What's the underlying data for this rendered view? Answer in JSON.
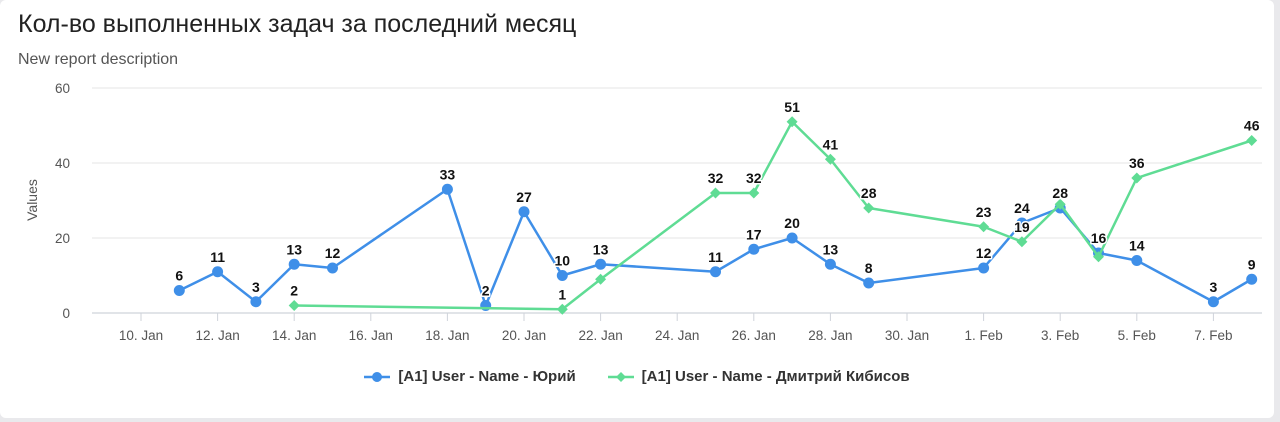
{
  "header": {
    "title": "Кол-во выполненных задач за последний месяц",
    "subtitle": "New report description"
  },
  "chart_data": {
    "type": "line",
    "ylabel": "Values",
    "ylim": [
      0,
      60
    ],
    "yticks": [
      0,
      20,
      40,
      60
    ],
    "grid": true,
    "legend_position": "bottom-center",
    "x_ticks": [
      {
        "date": "2025-01-10",
        "label": "10. Jan"
      },
      {
        "date": "2025-01-12",
        "label": "12. Jan"
      },
      {
        "date": "2025-01-14",
        "label": "14. Jan"
      },
      {
        "date": "2025-01-16",
        "label": "16. Jan"
      },
      {
        "date": "2025-01-18",
        "label": "18. Jan"
      },
      {
        "date": "2025-01-20",
        "label": "20. Jan"
      },
      {
        "date": "2025-01-22",
        "label": "22. Jan"
      },
      {
        "date": "2025-01-24",
        "label": "24. Jan"
      },
      {
        "date": "2025-01-26",
        "label": "26. Jan"
      },
      {
        "date": "2025-01-28",
        "label": "28. Jan"
      },
      {
        "date": "2025-01-30",
        "label": "30. Jan"
      },
      {
        "date": "2025-02-01",
        "label": "1. Feb"
      },
      {
        "date": "2025-02-03",
        "label": "3. Feb"
      },
      {
        "date": "2025-02-05",
        "label": "5. Feb"
      },
      {
        "date": "2025-02-07",
        "label": "7. Feb"
      }
    ],
    "series": [
      {
        "name": "[A1] User - Name - Юрий",
        "color": "#3f8fe8",
        "marker": "circle",
        "points": [
          {
            "x": "2025-01-11",
            "y": 6
          },
          {
            "x": "2025-01-12",
            "y": 11
          },
          {
            "x": "2025-01-13",
            "y": 3
          },
          {
            "x": "2025-01-14",
            "y": 13
          },
          {
            "x": "2025-01-15",
            "y": 12
          },
          {
            "x": "2025-01-18",
            "y": 33
          },
          {
            "x": "2025-01-19",
            "y": 2
          },
          {
            "x": "2025-01-20",
            "y": 27
          },
          {
            "x": "2025-01-21",
            "y": 10
          },
          {
            "x": "2025-01-22",
            "y": 13
          },
          {
            "x": "2025-01-25",
            "y": 11
          },
          {
            "x": "2025-01-26",
            "y": 17
          },
          {
            "x": "2025-01-27",
            "y": 20
          },
          {
            "x": "2025-01-28",
            "y": 13
          },
          {
            "x": "2025-01-29",
            "y": 8
          },
          {
            "x": "2025-02-01",
            "y": 12
          },
          {
            "x": "2025-02-02",
            "y": 24
          },
          {
            "x": "2025-02-03",
            "y": 28
          },
          {
            "x": "2025-02-04",
            "y": 16
          },
          {
            "x": "2025-02-05",
            "y": 14
          },
          {
            "x": "2025-02-07",
            "y": 3
          },
          {
            "x": "2025-02-08",
            "y": 9
          }
        ]
      },
      {
        "name": "[A1] User - Name - Дмитрий Кибисов",
        "color": "#5fdc94",
        "marker": "diamond",
        "points": [
          {
            "x": "2025-01-14",
            "y": 2
          },
          {
            "x": "2025-01-21",
            "y": 1
          },
          {
            "x": "2025-01-22",
            "y": 9,
            "label": false
          },
          {
            "x": "2025-01-25",
            "y": 32
          },
          {
            "x": "2025-01-26",
            "y": 32
          },
          {
            "x": "2025-01-27",
            "y": 51
          },
          {
            "x": "2025-01-28",
            "y": 41
          },
          {
            "x": "2025-01-29",
            "y": 28
          },
          {
            "x": "2025-02-01",
            "y": 23
          },
          {
            "x": "2025-02-02",
            "y": 19
          },
          {
            "x": "2025-02-03",
            "y": 29,
            "label": false
          },
          {
            "x": "2025-02-04",
            "y": 15,
            "label": false
          },
          {
            "x": "2025-02-05",
            "y": 36
          },
          {
            "x": "2025-02-08",
            "y": 46
          }
        ]
      }
    ]
  }
}
